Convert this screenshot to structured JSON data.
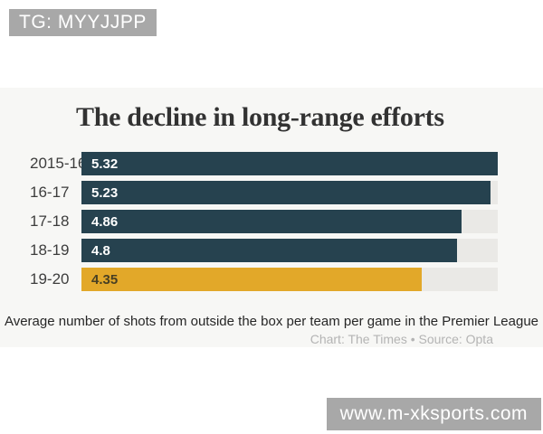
{
  "overlay": {
    "tg_badge": "TG: MYYJJPP",
    "watermark": "www.m-xksports.com"
  },
  "chart": {
    "title": "The decline in long-range efforts",
    "caption": "Average number of shots from outside the box per team per game in the Premier League",
    "attribution": "Chart: The Times • Source: Opta"
  },
  "chart_data": {
    "type": "bar",
    "orientation": "horizontal",
    "title": "The decline in long-range efforts",
    "categories": [
      "2015-16",
      "16-17",
      "17-18",
      "18-19",
      "19-20"
    ],
    "values": [
      5.32,
      5.23,
      4.86,
      4.8,
      4.35
    ],
    "value_labels": [
      "5.32",
      "5.23",
      "4.86",
      "4.8",
      "4.35"
    ],
    "xlim": [
      0,
      5.32
    ],
    "highlight_index": 4,
    "legend": "none",
    "grid": false,
    "colors": {
      "bar": "#26424f",
      "highlight": "#e2a829",
      "track": "#eae9e6",
      "card_bg": "#f7f7f5",
      "badge_bg": "#a8a8a8"
    }
  }
}
